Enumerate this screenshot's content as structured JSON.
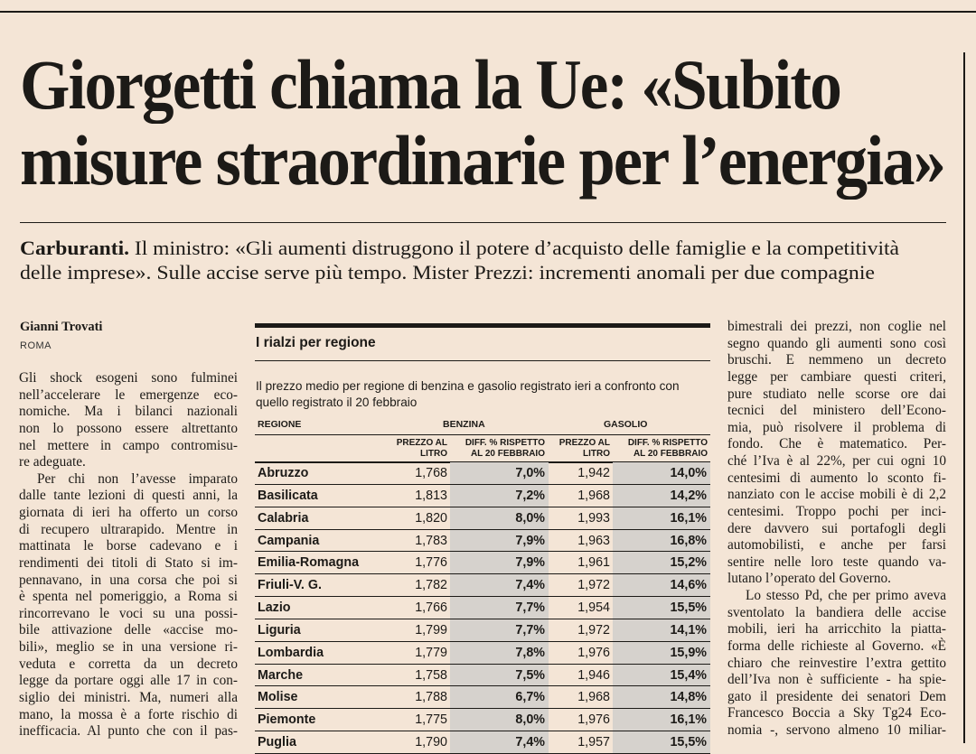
{
  "headline": {
    "lines": [
      "Giorgetti chiama la Ue: «Subito",
      "misure straordinarie per l’energia»"
    ]
  },
  "standfirst": {
    "kicker": "Carburanti.",
    "line1": " Il ministro: «Gli aumenti distruggono il potere d’acquisto delle famiglie e la competitività",
    "line2": "delle imprese». Sulle accise serve più tempo. Mister Prezzi: incrementi anomali per due compagnie"
  },
  "byline": {
    "author": "Gianni Trovati",
    "city": "ROMA"
  },
  "left_column": {
    "paragraphs": [
      {
        "indent": false,
        "lines": [
          "Gli shock esogeni sono fulminei",
          "nell’accelerare le emergenze eco-",
          "nomiche. Ma i bilanci nazionali",
          "non lo possono essere altrettanto",
          "nel mettere in campo contromisu-",
          "re adeguate."
        ]
      },
      {
        "indent": true,
        "lines": [
          "Per chi non l’avesse imparato",
          "dalle tante lezioni di questi anni, la",
          "giornata di ieri ha offerto un corso",
          "di recupero ultrarapido. Mentre in",
          "mattinata le borse cadevano e i",
          "rendimenti dei titoli di Stato si im-",
          "pennavano, in una corsa che poi si",
          "è spenta nel pomeriggio, a Roma si",
          "rincorrevano le voci su una possi-",
          "bile attivazione delle «accise mo-",
          "bili», meglio se in una versione ri-",
          "veduta e corretta da un decreto",
          "legge da portare oggi alle 17 in con-",
          "siglio dei ministri. Ma, numeri alla",
          "mano, la mossa è a forte rischio di",
          "inefficacia. Al punto che con il pas-"
        ]
      }
    ]
  },
  "right_column": {
    "paragraphs": [
      {
        "indent": false,
        "lines": [
          "bimestrali dei prezzi, non coglie nel",
          "segno quando gli aumenti sono così",
          "bruschi. E nemmeno un decreto",
          "legge per cambiare questi criteri,",
          "pure studiato nelle scorse ore dai",
          "tecnici del ministero dell’Econo-",
          "mia, può risolvere il problema di",
          "fondo. Che è matematico. Per-",
          "ché l’Iva è al 22%, per cui ogni 10",
          "centesimi di aumento lo sconto fi-",
          "nanziato con le accise mobili è di 2,2",
          "centesimi. Troppo pochi per inci-",
          "dere davvero sui portafogli degli",
          "automobilisti, e anche per farsi",
          "sentire nelle loro teste quando va-",
          "lutano l’operato del Governo."
        ]
      },
      {
        "indent": true,
        "lines": [
          "Lo stesso Pd, che per primo aveva",
          "sventolato la bandiera delle accise",
          "mobili, ieri ha arricchito la piatta-",
          "forma delle richieste al Governo. «È",
          "chiaro che reinvestire l’extra gettito",
          "dell’Iva non è sufficiente - ha spie-",
          "gato il presidente dei senatori Dem",
          "Francesco Boccia a Sky Tg24 Eco-",
          "nomia -, servono almeno 10 miliar-"
        ]
      }
    ]
  },
  "table": {
    "title": "I rialzi per regione",
    "description": "Il prezzo medio per regione di benzina e gasolio registrato ieri a confronto con quello registrato il 20 febbraio",
    "headers": {
      "region": "REGIONE",
      "group1": "BENZINA",
      "group2": "GASOLIO",
      "price": [
        "PREZZO AL",
        "LITRO"
      ],
      "diff": [
        "DIFF. % RISPETTO",
        "AL 20 FEBBRAIO"
      ]
    },
    "shade_color": "#d6d2cd",
    "rows": [
      [
        "Abruzzo",
        "1,768",
        "7,0%",
        "1,942",
        "14,0%"
      ],
      [
        "Basilicata",
        "1,813",
        "7,2%",
        "1,968",
        "14,2%"
      ],
      [
        "Calabria",
        "1,820",
        "8,0%",
        "1,993",
        "16,1%"
      ],
      [
        "Campania",
        "1,783",
        "7,9%",
        "1,963",
        "16,8%"
      ],
      [
        "Emilia-Romagna",
        "1,776",
        "7,9%",
        "1,961",
        "15,2%"
      ],
      [
        "Friuli-V. G.",
        "1,782",
        "7,4%",
        "1,972",
        "14,6%"
      ],
      [
        "Lazio",
        "1,766",
        "7,7%",
        "1,954",
        "15,5%"
      ],
      [
        "Liguria",
        "1,799",
        "7,7%",
        "1,972",
        "14,1%"
      ],
      [
        "Lombardia",
        "1,779",
        "7,8%",
        "1,976",
        "15,9%"
      ],
      [
        "Marche",
        "1,758",
        "7,5%",
        "1,946",
        "15,4%"
      ],
      [
        "Molise",
        "1,788",
        "6,7%",
        "1,968",
        "14,8%"
      ],
      [
        "Piemonte",
        "1,775",
        "8,0%",
        "1,976",
        "16,1%"
      ],
      [
        "Puglia",
        "1,790",
        "7,4%",
        "1,957",
        "15,5%"
      ]
    ]
  }
}
